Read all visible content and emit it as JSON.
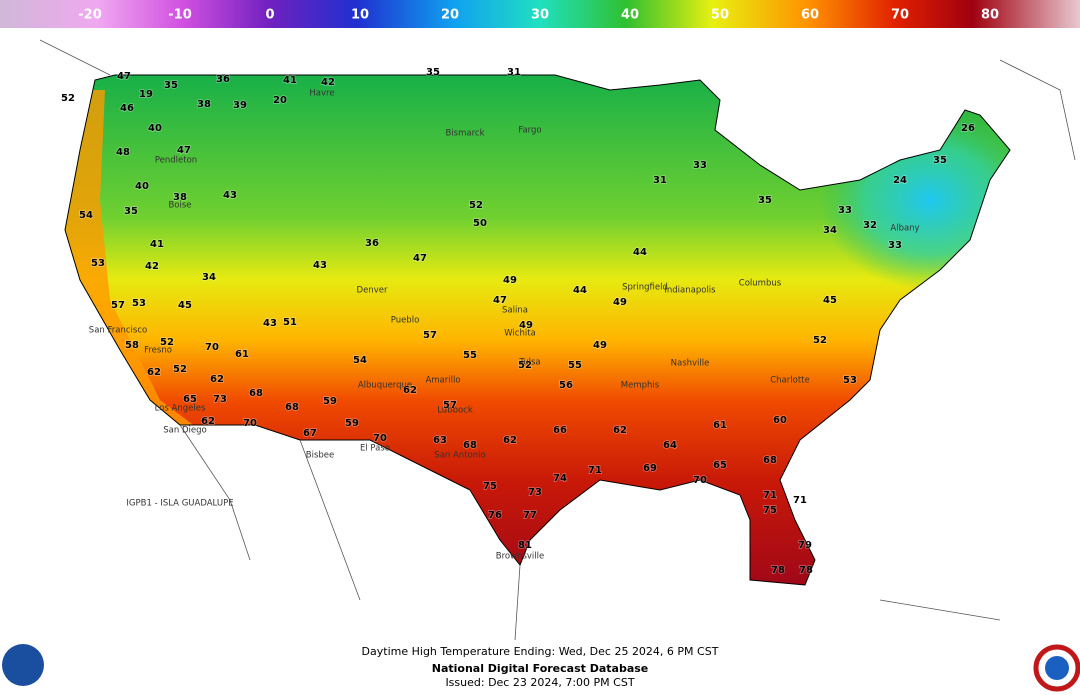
{
  "legend": {
    "ticks": [
      -20,
      -10,
      0,
      10,
      20,
      30,
      40,
      50,
      60,
      70,
      80
    ]
  },
  "map": {
    "temperatures": [
      47,
      35,
      36,
      41,
      42,
      35,
      31,
      52,
      19,
      38,
      39,
      20,
      46,
      40,
      47,
      48,
      40,
      38,
      43,
      54,
      35,
      41,
      53,
      42,
      34,
      57,
      53,
      45,
      58,
      52,
      70,
      61,
      62,
      52,
      62,
      65,
      73,
      62,
      68,
      70,
      68,
      67,
      59,
      59,
      70,
      51,
      43,
      43,
      36,
      47,
      50,
      52,
      47,
      49,
      55,
      52,
      56,
      55,
      49,
      49,
      44,
      31,
      33,
      35,
      34,
      32,
      33,
      35,
      26,
      24,
      33,
      45,
      52,
      53,
      60,
      68,
      65,
      70,
      69,
      71,
      74,
      73,
      75,
      76,
      77,
      81,
      71,
      71,
      75,
      79,
      78,
      78,
      63,
      68,
      62,
      66,
      62,
      64,
      61,
      54,
      62,
      57,
      57,
      49,
      44
    ],
    "places": [
      "Havre",
      "Bismarck",
      "Fargo",
      "Boise",
      "Denver",
      "Pueblo",
      "Albuquerque",
      "El Paso",
      "Bisbee",
      "San Francisco",
      "Fresno",
      "Los Angeles",
      "San Diego",
      "Salina",
      "Wichita",
      "Tulsa",
      "Amarillo",
      "Lubbock",
      "San Antonio",
      "Brownsville",
      "Springfield",
      "Memphis",
      "Nashville",
      "Indianapolis",
      "Columbus",
      "Charlotte",
      "Albany",
      "Pendleton"
    ],
    "annotation": "IGPB1 - ISLA GUADALUPE"
  },
  "footer": {
    "line1": "Daytime High Temperature Ending: Wed, Dec 25 2024, 6 PM CST",
    "line2": "National Digital Forecast Database",
    "line3": "Issued: Dec 23 2024, 7:00 PM CST"
  }
}
